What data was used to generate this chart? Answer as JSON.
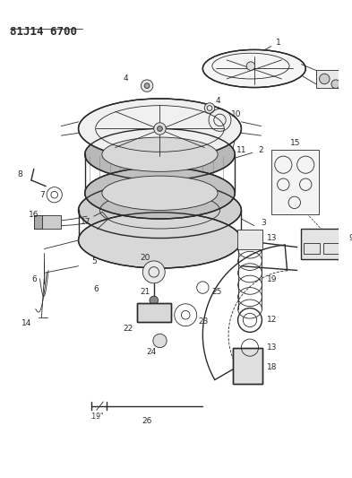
{
  "title": "81J14 6700",
  "bg_color": "#ffffff",
  "line_color": "#2a2a2a",
  "title_fontsize": 9,
  "label_fontsize": 6.5,
  "figsize": [
    3.93,
    5.33
  ],
  "dpi": 100
}
